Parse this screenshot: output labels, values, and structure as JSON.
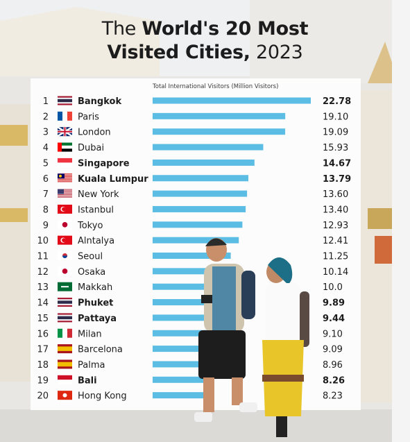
{
  "title": {
    "line1_pre": "The",
    "line1_bold": "World's 20 Most",
    "line2_bold": "Visited Cities,",
    "line2_post": "2023"
  },
  "colors": {
    "bar": "#5bbde3",
    "panel": "#ffffff",
    "text": "#1c1c1c"
  },
  "chart_data": {
    "type": "bar",
    "orientation": "horizontal",
    "xlabel": "Total International Visitors (Million Visitors)",
    "ranks": [
      "1",
      "2",
      "3",
      "4",
      "5",
      "6",
      "7",
      "8",
      "9",
      "10",
      "11",
      "12",
      "13",
      "14",
      "15",
      "16",
      "17",
      "18",
      "19",
      "20"
    ],
    "categories": [
      "Bangkok",
      "Paris",
      "London",
      "Dubai",
      "Singapore",
      "Kuala Lumpur",
      "New York",
      "Istanbul",
      "Tokyo",
      "Alntalya",
      "Seoul",
      "Osaka",
      "Makkah",
      "Phuket",
      "Pattaya",
      "Milan",
      "Barcelona",
      "Palma",
      "Bali",
      "Hong Kong"
    ],
    "values": [
      22.78,
      19.1,
      19.09,
      15.93,
      14.67,
      13.79,
      13.6,
      13.4,
      12.93,
      12.41,
      11.25,
      10.14,
      10.0,
      9.89,
      9.44,
      9.1,
      9.09,
      8.96,
      8.26,
      8.23
    ],
    "value_labels": [
      "22.78",
      "19.10",
      "19.09",
      "15.93",
      "14.67",
      "13.79",
      "13.60",
      "13.40",
      "12.93",
      "12.41",
      "11.25",
      "10.14",
      "10.0",
      "9.89",
      "9.44",
      "9.10",
      "9.09",
      "8.96",
      "8.26",
      "8.23"
    ],
    "flags": [
      "thailand-flag",
      "france-flag",
      "uk-flag",
      "uae-flag",
      "singapore-flag",
      "malaysia-flag",
      "usa-flag",
      "turkey-flag",
      "japan-flag",
      "turkey-flag",
      "south-korea-flag",
      "japan-flag",
      "saudi-arabia-flag",
      "thailand-flag",
      "thailand-flag",
      "italy-flag",
      "spain-flag",
      "spain-flag",
      "indonesia-flag",
      "hong-kong-flag"
    ],
    "highlighted": [
      true,
      false,
      false,
      false,
      true,
      true,
      false,
      false,
      false,
      false,
      false,
      false,
      false,
      true,
      true,
      false,
      false,
      false,
      true,
      false
    ],
    "xlim": [
      0,
      22.78
    ],
    "grid": false,
    "legend": "none"
  }
}
